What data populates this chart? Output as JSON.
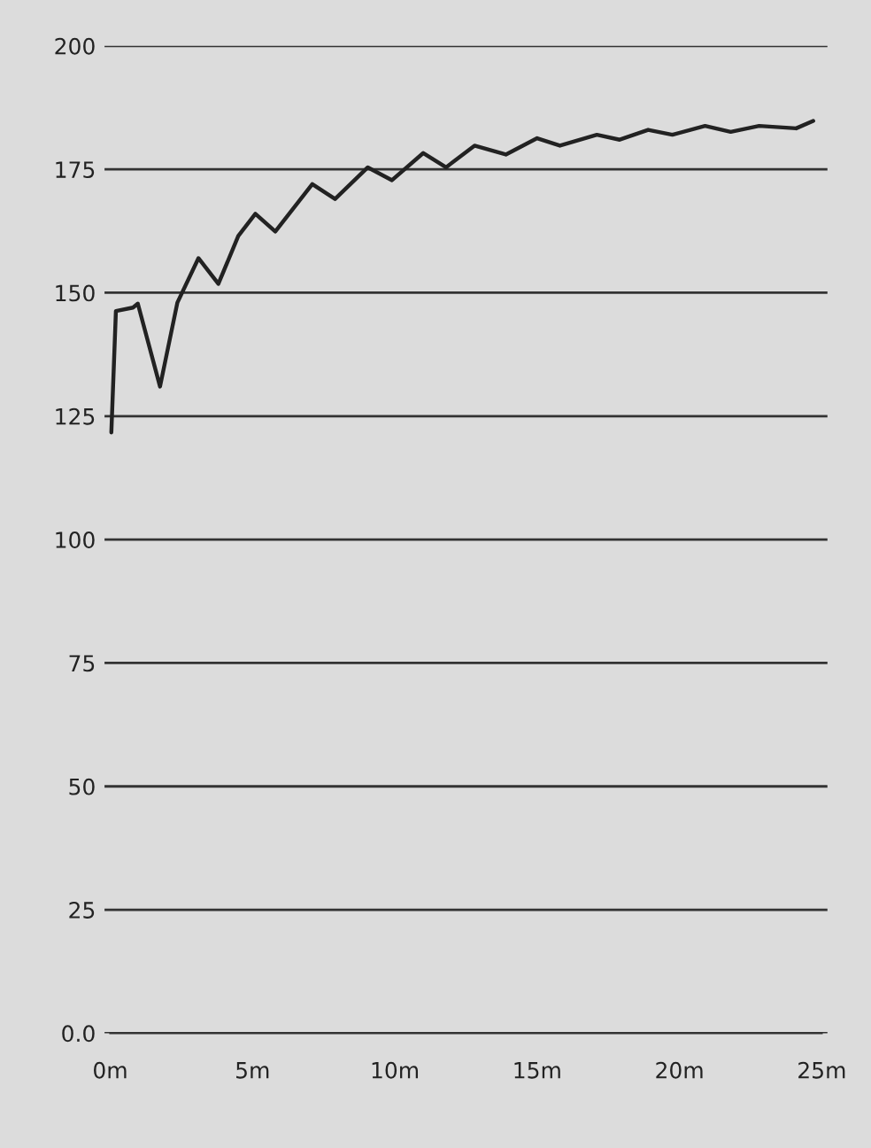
{
  "chart_data": {
    "type": "line",
    "grid": "y",
    "marker": "none",
    "line_style": "solid",
    "xlim": [
      0,
      25
    ],
    "ylim": [
      0,
      200
    ],
    "xticks": [
      {
        "value": 0,
        "label": "0m"
      },
      {
        "value": 5,
        "label": "5m"
      },
      {
        "value": 10,
        "label": "10m"
      },
      {
        "value": 15,
        "label": "15m"
      },
      {
        "value": 20,
        "label": "20m"
      },
      {
        "value": 25,
        "label": "25m"
      }
    ],
    "yticks": [
      {
        "value": 0,
        "label": "0.0"
      },
      25,
      50,
      75,
      100,
      125,
      150,
      175,
      200
    ],
    "series": [
      {
        "color": "#222222",
        "x": [
          0.04,
          0.2,
          0.8,
          0.97,
          1.75,
          2.36,
          3.1,
          3.8,
          4.5,
          5.1,
          5.8,
          7.1,
          7.9,
          9.05,
          9.9,
          11.0,
          11.8,
          12.8,
          13.9,
          15.0,
          15.8,
          17.1,
          17.9,
          18.9,
          19.75,
          20.9,
          21.8,
          22.8,
          24.1,
          24.7
        ],
        "values": [
          121.7,
          146.3,
          147,
          147.8,
          131,
          148,
          157,
          151.8,
          161.5,
          166,
          162.4,
          172,
          169,
          175.4,
          172.8,
          178.3,
          175.4,
          179.8,
          178,
          181.3,
          179.8,
          182,
          181,
          183,
          182,
          183.8,
          182.6,
          183.8,
          183.3,
          184.8
        ]
      }
    ]
  }
}
